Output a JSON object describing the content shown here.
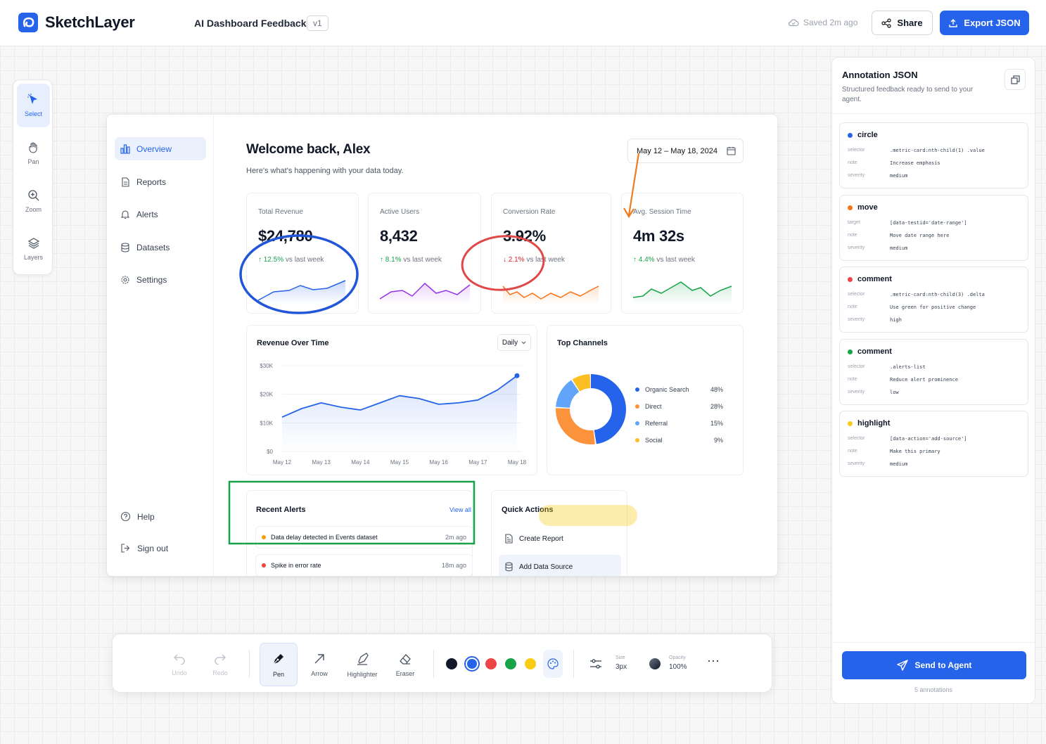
{
  "header": {
    "brand": "SketchLayer",
    "doc_title": "AI Dashboard Feedback",
    "version": "v1",
    "saved": "Saved 2m ago",
    "share": "Share",
    "export": "Export JSON"
  },
  "tools": [
    {
      "label": "Select",
      "icon": "cursor-icon"
    },
    {
      "label": "Pan",
      "icon": "hand-icon"
    },
    {
      "label": "Zoom",
      "icon": "zoom-icon"
    },
    {
      "label": "Layers",
      "icon": "layers-icon"
    }
  ],
  "mockup": {
    "nav": [
      "Overview",
      "Reports",
      "Alerts",
      "Datasets",
      "Settings"
    ],
    "nav_bottom": [
      "Help",
      "Sign out"
    ],
    "welcome": "Welcome back, Alex",
    "subtitle": "Here's what's happening with your data today.",
    "date_range": "May 12 – May 18, 2024",
    "metrics": [
      {
        "label": "Total Revenue",
        "value": "$24,780",
        "delta": "12.5%",
        "vs": "vs last week",
        "dir": "up",
        "color": "#2563eb"
      },
      {
        "label": "Active Users",
        "value": "8,432",
        "delta": "8.1%",
        "vs": "vs last week",
        "dir": "up",
        "color": "#9333ea"
      },
      {
        "label": "Conversion Rate",
        "value": "3.92%",
        "delta": "2.1%",
        "vs": "vs last week",
        "dir": "down",
        "color": "#f97316"
      },
      {
        "label": "Avg. Session Time",
        "value": "4m 32s",
        "delta": "4.4%",
        "vs": "vs last week",
        "dir": "up",
        "color": "#16a34a"
      }
    ],
    "revenue_chart": {
      "title": "Revenue Over Time",
      "period": "Daily",
      "yticks": [
        "$30K",
        "$20K",
        "$10K",
        "$0"
      ],
      "xticks": [
        "May 12",
        "May 13",
        "May 14",
        "May 15",
        "May 16",
        "May 17",
        "May 18"
      ]
    },
    "channels": {
      "title": "Top Channels",
      "items": [
        {
          "name": "Organic Search",
          "pct": "48%",
          "value": 48,
          "color": "#2563eb"
        },
        {
          "name": "Direct",
          "pct": "28%",
          "value": 28,
          "color": "#fb923c"
        },
        {
          "name": "Referral",
          "pct": "15%",
          "value": 15,
          "color": "#60a5fa"
        },
        {
          "name": "Social",
          "pct": "9%",
          "value": 9,
          "color": "#fbbf24"
        }
      ]
    },
    "alerts": {
      "title": "Recent Alerts",
      "view_all": "View all",
      "items": [
        {
          "text": "Data delay detected in Events dataset",
          "time": "2m ago",
          "color": "#f59e0b"
        },
        {
          "text": "Spike in error rate",
          "time": "18m ago",
          "color": "#ef4444"
        }
      ]
    },
    "quick_actions": {
      "title": "Quick Actions",
      "items": [
        "Create Report",
        "Add Data Source"
      ]
    }
  },
  "chart_data": {
    "type": "line",
    "title": "Revenue Over Time",
    "xlabel": "",
    "ylabel": "",
    "categories": [
      "May 12",
      "May 13",
      "May 14",
      "May 15",
      "May 16",
      "May 17",
      "May 18"
    ],
    "x": [
      0,
      0.5,
      1,
      1.5,
      2,
      2.5,
      3,
      3.5,
      4,
      4.5,
      5,
      5.5,
      6
    ],
    "values": [
      12000,
      15000,
      17000,
      15500,
      14500,
      17000,
      19500,
      18500,
      16500,
      17000,
      18000,
      21500,
      26500
    ],
    "ylim": [
      0,
      30000
    ],
    "grid": true
  },
  "panel": {
    "title": "Annotation JSON",
    "subtitle": "Structured feedback ready to send to your agent.",
    "annotations": [
      {
        "type": "circle",
        "color": "#2563eb",
        "rows": [
          {
            "k": "selector",
            "v": ".metric-card:nth-child(1) .value"
          },
          {
            "k": "note",
            "v": "Increase emphasis"
          },
          {
            "k": "severity",
            "v": "medium"
          }
        ]
      },
      {
        "type": "move",
        "color": "#f97316",
        "rows": [
          {
            "k": "target",
            "v": "[data-testid='date-range']"
          },
          {
            "k": "note",
            "v": "Move date range here"
          },
          {
            "k": "severity",
            "v": "medium"
          }
        ]
      },
      {
        "type": "comment",
        "color": "#ef4444",
        "rows": [
          {
            "k": "selector",
            "v": ".metric-card:nth-child(3) .delta"
          },
          {
            "k": "note",
            "v": "Use green for positive change"
          },
          {
            "k": "severity",
            "v": "high"
          }
        ]
      },
      {
        "type": "comment",
        "color": "#16a34a",
        "rows": [
          {
            "k": "selector",
            "v": ".alerts-list"
          },
          {
            "k": "note",
            "v": "Reduce alert prominence"
          },
          {
            "k": "severity",
            "v": "low"
          }
        ]
      },
      {
        "type": "highlight",
        "color": "#facc15",
        "rows": [
          {
            "k": "selector",
            "v": "[data-action='add-source']"
          },
          {
            "k": "note",
            "v": "Make this primary"
          },
          {
            "k": "severity",
            "v": "medium"
          }
        ]
      }
    ],
    "send": "Send to Agent",
    "count": "5 annotations"
  },
  "toolbar": {
    "undo": "Undo",
    "redo": "Redo",
    "pen": "Pen",
    "arrow": "Arrow",
    "highlighter": "Highlighter",
    "eraser": "Eraser",
    "colors": [
      "#111827",
      "#2563eb",
      "#ef4444",
      "#16a34a",
      "#facc15"
    ],
    "size_label": "Size",
    "size": "3px",
    "opacity_label": "Opacity",
    "opacity": "100%"
  }
}
